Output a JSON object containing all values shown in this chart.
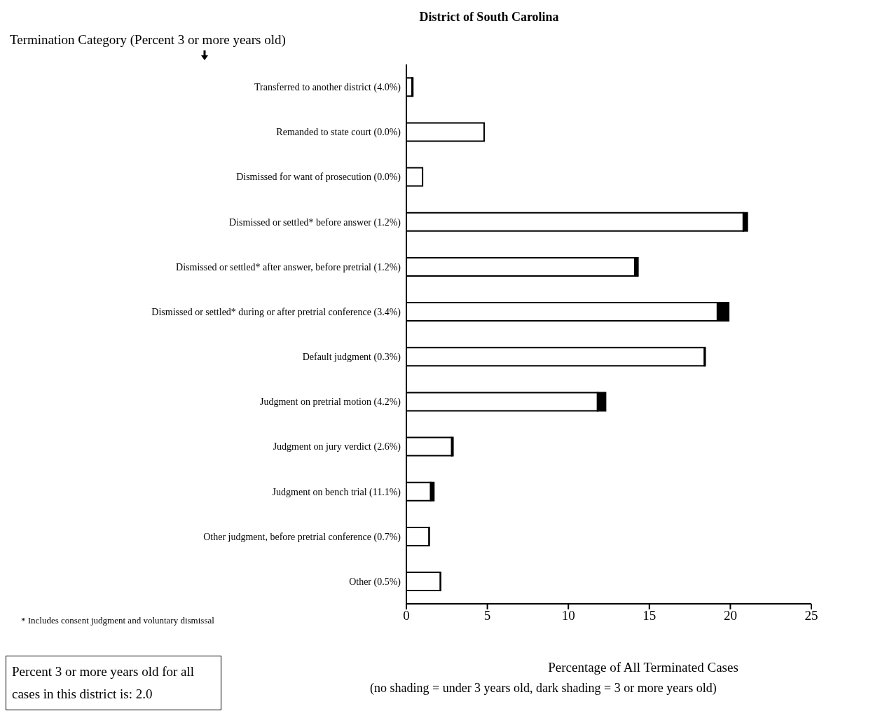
{
  "chart_data": {
    "type": "bar",
    "orientation": "horizontal",
    "stacked": true,
    "title": "District of South Carolina",
    "ylabel": "Termination Category (Percent 3 or more years old)",
    "xlabel": "Percentage of All Terminated Cases",
    "categories": [
      "Transferred to another district (4.0%)",
      "Remanded to state court (0.0%)",
      "Dismissed for want of prosecution (0.0%)",
      "Dismissed or settled* before answer (1.2%)",
      "Dismissed or settled* after answer, before pretrial (1.2%)",
      "Dismissed or settled* during or after pretrial conference (3.4%)",
      "Default judgment (0.3%)",
      "Judgment on pretrial motion (4.2%)",
      "Judgment on jury verdict (2.6%)",
      "Judgment on bench trial (11.1%)",
      "Other judgment, before pretrial conference (0.7%)",
      "Other (0.5%)"
    ],
    "series": [
      {
        "color": "#ffffff",
        "values": [
          0.35,
          4.8,
          1.0,
          20.8,
          14.1,
          19.2,
          18.4,
          11.8,
          2.8,
          1.5,
          1.4,
          2.1
        ]
      },
      {
        "color": "#000000",
        "values": [
          0.05,
          0,
          0,
          0.25,
          0.2,
          0.7,
          0.05,
          0.5,
          0.08,
          0.2,
          0.01,
          0.01
        ]
      }
    ],
    "xlim": [
      0,
      25
    ],
    "xticks": [
      0,
      5,
      10,
      15,
      20,
      25
    ],
    "grid": false,
    "legend": false,
    "annotations": [
      "* Includes consent judgment and voluntary dismissal",
      "(no shading = under 3 years old, dark shading = 3 or more years old)",
      "Percent 3 or more years old for all cases in this district is:  2.0"
    ]
  }
}
